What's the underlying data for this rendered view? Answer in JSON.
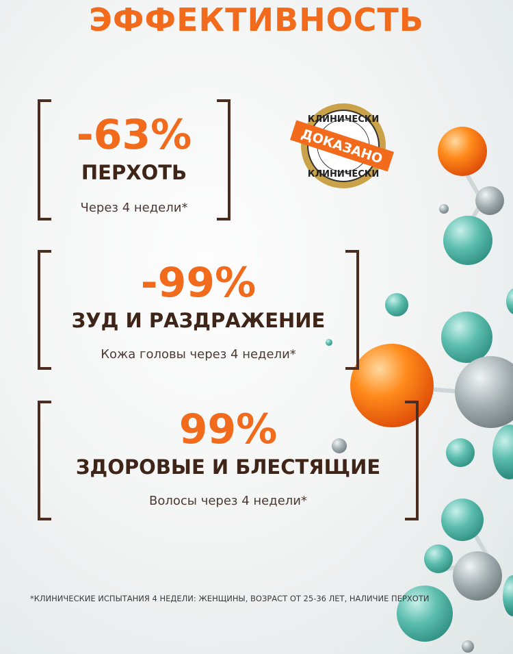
{
  "title": "ЭФФЕКТИВНОСТЬ",
  "stats": [
    {
      "value": "-63%",
      "label": "ПЕРХОТЬ",
      "note": "Через 4 недели*"
    },
    {
      "value": "-99%",
      "label": "ЗУД И РАЗДРАЖЕНИЕ",
      "note": "Кожа головы через 4 недели*"
    },
    {
      "value": "99%",
      "label": "ЗДОРОВЫЕ И БЛЕСТЯЩИЕ",
      "note": "Волосы через 4 недели*"
    }
  ],
  "badge": {
    "top": "КЛИНИЧЕСКИ",
    "ribbon": "ДОКАЗАНО",
    "bottom": "КЛИНИЧЕСКИ"
  },
  "footnote": "*КЛИНИЧЕСКИЕ ИСПЫТАНИЯ 4 НЕДЕЛИ: ЖЕНЩИНЫ, ВОЗРАСТ ОТ 25-36 ЛЕТ, НАЛИЧИЕ ПЕРХОТИ",
  "colors": {
    "accent": "#f26a1b",
    "text": "#3f2418"
  }
}
